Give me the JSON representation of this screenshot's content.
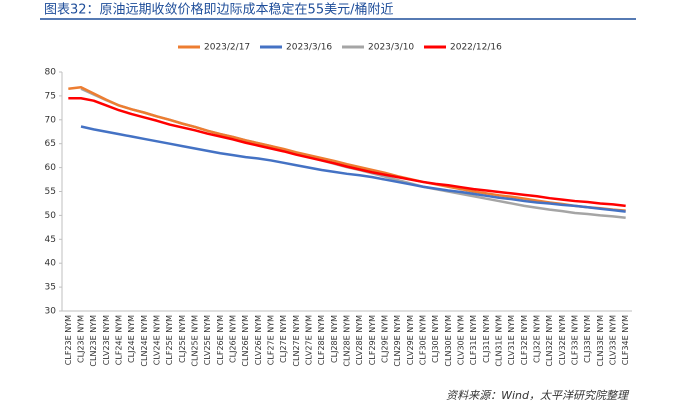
{
  "chart_data": {
    "type": "line",
    "title": "图表32：原油远期收敛价格即边际成本稳定在55美元/桶附近",
    "source": "资料来源：Wind，太平洋研究院整理",
    "categories": [
      "CLF23E NYM",
      "CLJ23E NYM",
      "CLN23E NYM",
      "CLV23E NYM",
      "CLF24E NYM",
      "CLJ24E NYM",
      "CLN24E NYM",
      "CLV24E NYM",
      "CLF25E NYM",
      "CLJ25E NYM",
      "CLN25E NYM",
      "CLV25E NYM",
      "CLF26E NYM",
      "CLJ26E NYM",
      "CLN26E NYM",
      "CLV26E NYM",
      "CLF27E NYM",
      "CLJ27E NYM",
      "CLN27E NYM",
      "CLV27E NYM",
      "CLF28E NYM",
      "CLJ28E NYM",
      "CLN28E NYM",
      "CLV28E NYM",
      "CLF29E NYM",
      "CLJ29E NYM",
      "CLN29E NYM",
      "CLV29E NYM",
      "CLF30E NYM",
      "CLJ30E NYM",
      "CLN30E NYM",
      "CLV30E NYM",
      "CLF31E NYM",
      "CLJ31E NYM",
      "CLN31E NYM",
      "CLV31E NYM",
      "CLF32E NYM",
      "CLJ32E NYM",
      "CLN32E NYM",
      "CLV32E NYM",
      "CLF33E NYM",
      "CLJ33E NYM",
      "CLN33E NYM",
      "CLV33E NYM",
      "CLF34E NYM"
    ],
    "series": [
      {
        "name": "2023/2/17",
        "color": "#ed7d31",
        "values": [
          76.5,
          76.8,
          75.5,
          74.2,
          73.0,
          72.2,
          71.5,
          70.7,
          70.0,
          69.2,
          68.5,
          67.7,
          67.0,
          66.4,
          65.7,
          65.1,
          64.5,
          63.9,
          63.2,
          62.6,
          62.0,
          61.4,
          60.7,
          60.1,
          59.5,
          58.9,
          58.2,
          57.6,
          57.0,
          56.5,
          56.0,
          55.5,
          55.0,
          54.6,
          54.2,
          53.9,
          53.5,
          53.1,
          52.7,
          52.4,
          52.0,
          51.7,
          51.5,
          51.2,
          51.0
        ]
      },
      {
        "name": "2023/3/16",
        "color": "#4472c4",
        "values": [
          null,
          68.6,
          68.0,
          67.5,
          67.0,
          66.5,
          66.0,
          65.5,
          65.0,
          64.5,
          64.0,
          63.5,
          63.0,
          62.6,
          62.2,
          61.9,
          61.5,
          61.0,
          60.5,
          60.0,
          59.5,
          59.1,
          58.7,
          58.4,
          58.0,
          57.5,
          57.0,
          56.5,
          56.0,
          55.6,
          55.2,
          54.9,
          54.5,
          54.1,
          53.7,
          53.4,
          53.0,
          52.7,
          52.5,
          52.2,
          52.0,
          51.7,
          51.4,
          51.1,
          50.8
        ]
      },
      {
        "name": "2023/3/10",
        "color": "#a5a5a5",
        "values": [
          null,
          76.5,
          75.3,
          74.1,
          73.0,
          72.2,
          71.5,
          70.7,
          70.0,
          69.2,
          68.5,
          67.7,
          67.0,
          66.4,
          65.7,
          65.1,
          64.5,
          63.7,
          62.9,
          62.2,
          61.5,
          60.8,
          60.1,
          59.5,
          58.8,
          58.1,
          57.4,
          56.7,
          56.0,
          55.5,
          55.0,
          54.5,
          54.0,
          53.5,
          53.0,
          52.5,
          52.0,
          51.6,
          51.2,
          50.9,
          50.5,
          50.3,
          50.0,
          49.8,
          49.5
        ]
      },
      {
        "name": "2022/12/16",
        "color": "#ff0000",
        "values": [
          74.5,
          74.5,
          74.0,
          73.0,
          72.0,
          71.2,
          70.5,
          69.8,
          69.0,
          68.4,
          67.8,
          67.1,
          66.5,
          65.9,
          65.2,
          64.6,
          64.0,
          63.4,
          62.7,
          62.1,
          61.5,
          60.9,
          60.2,
          59.6,
          59.0,
          58.5,
          58.0,
          57.5,
          57.0,
          56.6,
          56.3,
          55.9,
          55.5,
          55.2,
          54.9,
          54.6,
          54.3,
          54.0,
          53.6,
          53.3,
          53.0,
          52.8,
          52.5,
          52.3,
          52.0
        ]
      }
    ],
    "ylim": [
      30,
      80
    ],
    "yticks": [
      30,
      35,
      40,
      45,
      50,
      55,
      60,
      65,
      70,
      75,
      80
    ],
    "grid": false
  }
}
